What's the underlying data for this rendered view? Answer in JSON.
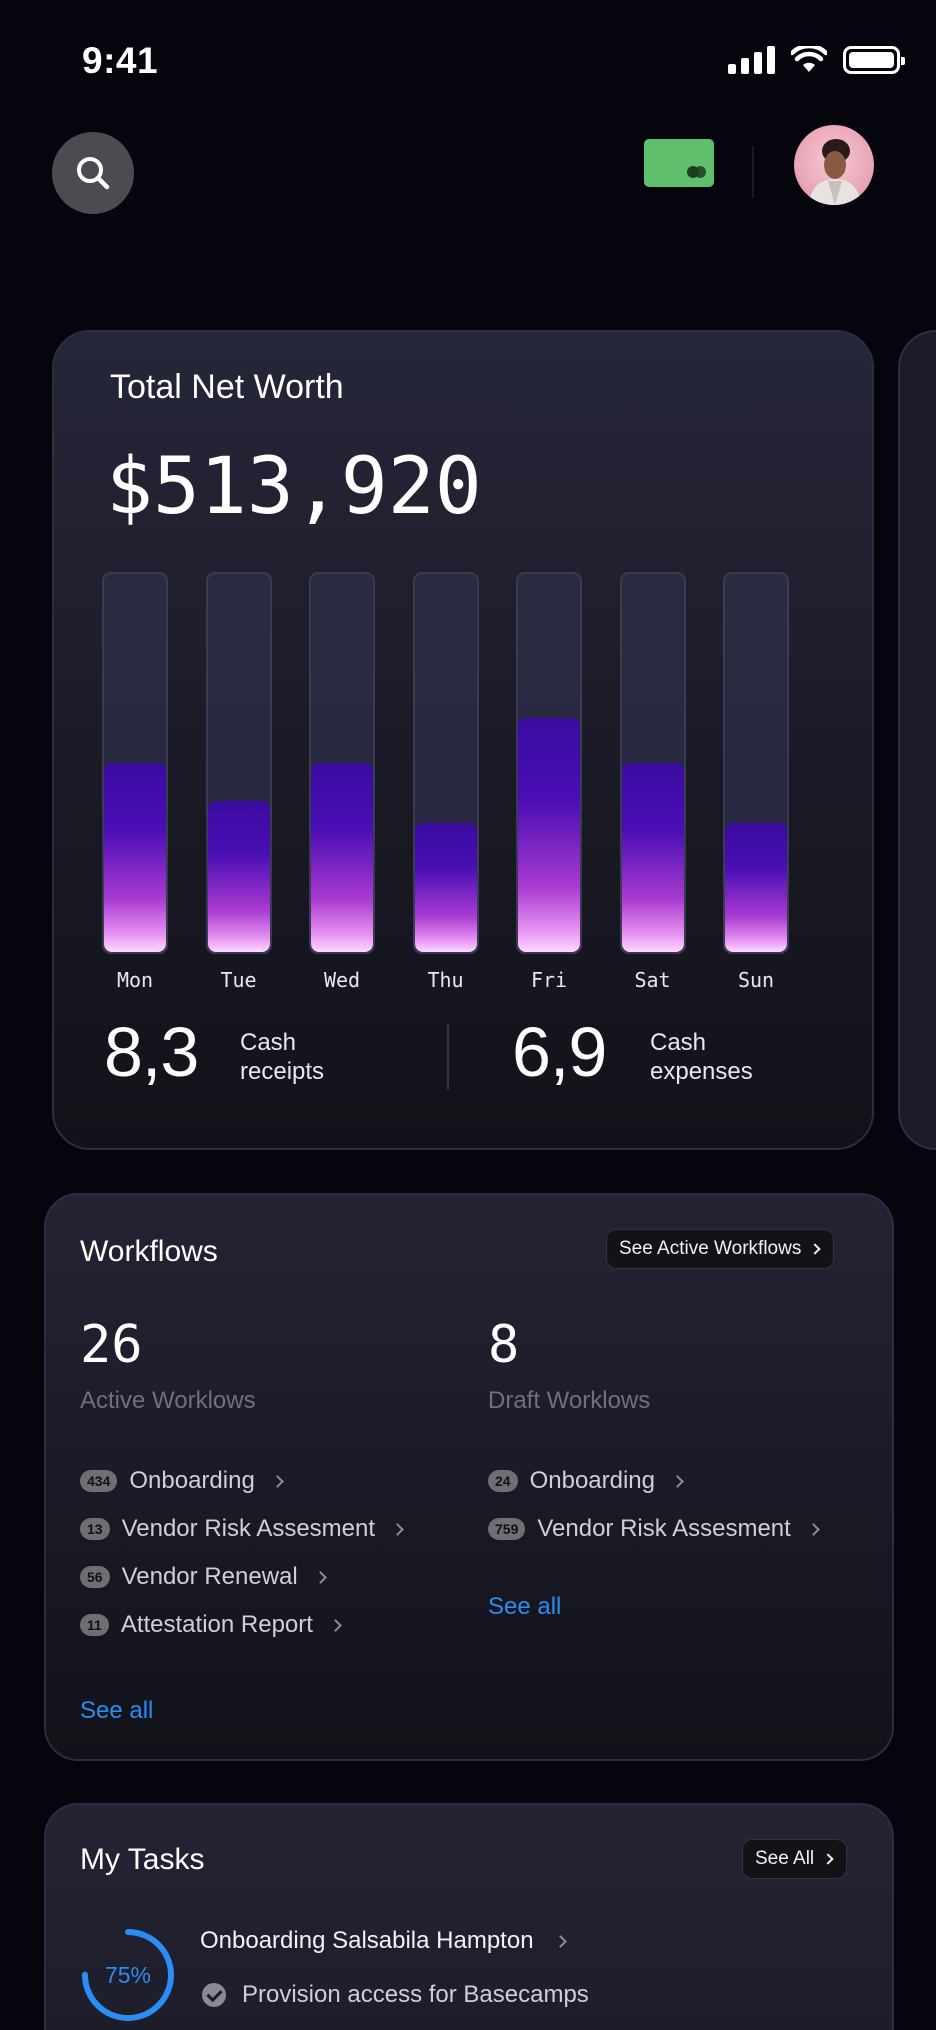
{
  "status_bar": {
    "time": "9:41"
  },
  "header": {
    "search_icon": "search-icon",
    "card_icon": "credit-card-icon",
    "avatar": "user-avatar"
  },
  "net_worth": {
    "title": "Total Net Worth",
    "value": "$513,920",
    "stats": [
      {
        "value": "8,3",
        "label_line1": "Cash",
        "label_line2": "receipts"
      },
      {
        "value": "6,9",
        "label_line1": "Cash",
        "label_line2": "expenses"
      }
    ]
  },
  "chart_data": {
    "type": "bar",
    "categories": [
      "Mon",
      "Tue",
      "Wed",
      "Thu",
      "Fri",
      "Sat",
      "Sun"
    ],
    "values": [
      0.5,
      0.4,
      0.5,
      0.34,
      0.62,
      0.5,
      0.34
    ],
    "ylim": [
      0,
      1
    ],
    "title": "",
    "xlabel": "",
    "ylabel": ""
  },
  "workflows": {
    "title": "Workflows",
    "see_active_label": "See Active Workflows",
    "active": {
      "count": "26",
      "label": "Active Worklows",
      "items": [
        {
          "badge": "434",
          "label": "Onboarding"
        },
        {
          "badge": "13",
          "label": "Vendor Risk Assesment"
        },
        {
          "badge": "56",
          "label": "Vendor Renewal"
        },
        {
          "badge": "11",
          "label": "Attestation Report"
        }
      ],
      "see_all": "See all"
    },
    "draft": {
      "count": "8",
      "label": "Draft Worklows",
      "items": [
        {
          "badge": "24",
          "label": "Onboarding"
        },
        {
          "badge": "759",
          "label": "Vendor Risk Assesment"
        }
      ],
      "see_all": "See all"
    }
  },
  "tasks": {
    "title": "My Tasks",
    "see_all_label": "See All",
    "items": [
      {
        "progress_label": "75%",
        "progress": 0.75,
        "title": "Onboarding Salsabila Hampton",
        "subtask": "Provision access for Basecamps"
      }
    ]
  },
  "colors": {
    "accent": "#2b8cf4",
    "card_green": "#5fbf6c",
    "bar_purple": "#4a0eb5",
    "bar_pink": "#e48ff0"
  }
}
